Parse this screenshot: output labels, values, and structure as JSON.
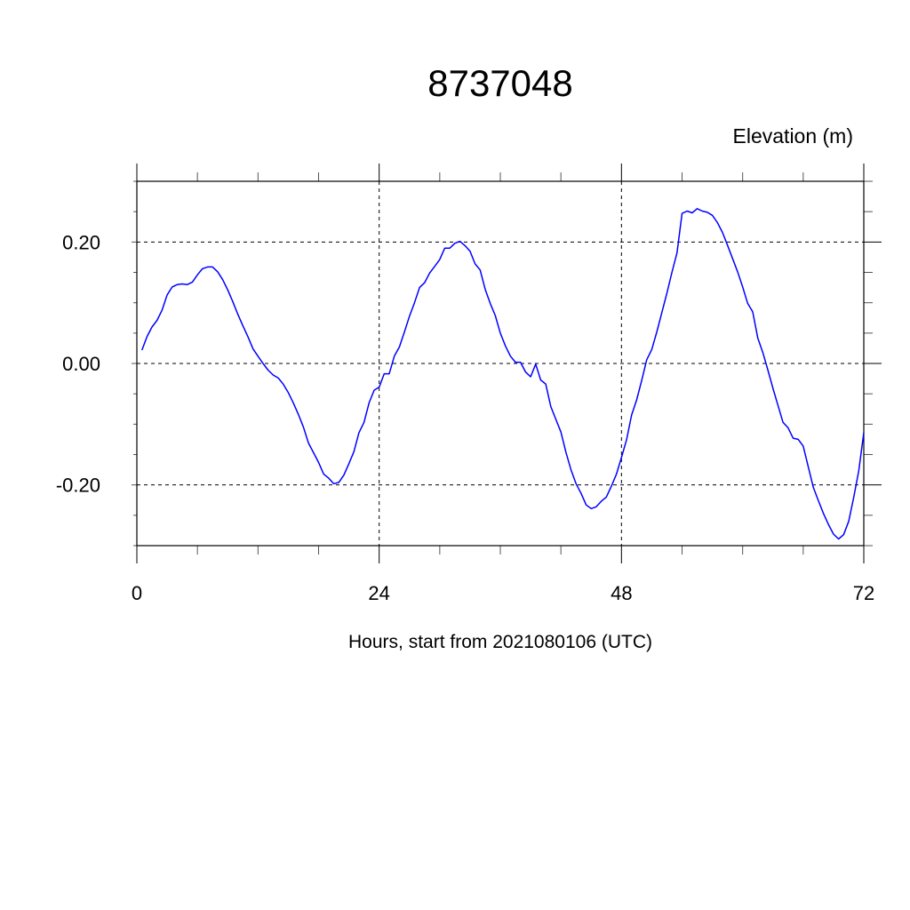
{
  "chart_data": {
    "type": "line",
    "title": "8737048",
    "ylabel": "Elevation (m)",
    "xlabel": "Hours, start from 2021080106 (UTC)",
    "xlim": [
      0,
      72
    ],
    "ylim": [
      -0.3,
      0.3
    ],
    "x_ticks": [
      0,
      24,
      48,
      72
    ],
    "x_tick_labels": [
      "0",
      "24",
      "48",
      "72"
    ],
    "y_ticks": [
      0.2,
      0.0,
      -0.2
    ],
    "y_tick_labels": [
      "0.20",
      "0.00",
      "-0.20"
    ],
    "grid": true,
    "line_color": "#0000ff",
    "series": [
      {
        "x": [
          0.5,
          1,
          1.5,
          2,
          2.5,
          3,
          3.5,
          4,
          4.5,
          5,
          5.5,
          6,
          6.5,
          7,
          7.5,
          8,
          8.5,
          9,
          9.5,
          10,
          10.5,
          11,
          11.5,
          12,
          12.5,
          13,
          13.5,
          14,
          14.5,
          15,
          15.5,
          16,
          16.5,
          17,
          17.5,
          18,
          18.5,
          19,
          19.5,
          20,
          20.5,
          21,
          21.5,
          22,
          22.5,
          23,
          23.5,
          24,
          24.5,
          25,
          25.5,
          26,
          26.5,
          27,
          27.5,
          28,
          28.5,
          29,
          29.5,
          30,
          30.5,
          31,
          31.5,
          32,
          32.5,
          33,
          33.5,
          34,
          34.5,
          35,
          35.5,
          36,
          36.5,
          37,
          37.5,
          38,
          38.5,
          39,
          39.5,
          40,
          40.5,
          41,
          41.5,
          42,
          42.5,
          43,
          43.5,
          44,
          44.5,
          45,
          45.5,
          46,
          46.5,
          47,
          47.5,
          48,
          48.5,
          49,
          49.5,
          50,
          50.5,
          51,
          51.5,
          52,
          52.5,
          53,
          53.5,
          54,
          54.5,
          55,
          55.5,
          56,
          56.5,
          57,
          57.5,
          58,
          58.5,
          59,
          59.5,
          60,
          60.5,
          61,
          61.5,
          62,
          62.5,
          63,
          63.5,
          64,
          64.5,
          65,
          65.5,
          66,
          66.5,
          67,
          67.5,
          68,
          68.5,
          69,
          69.5,
          70,
          70.5,
          71,
          71.5,
          72
        ],
        "values": [
          0.022,
          0.044,
          0.06,
          0.071,
          0.088,
          0.113,
          0.126,
          0.13,
          0.131,
          0.13,
          0.134,
          0.146,
          0.156,
          0.159,
          0.159,
          0.151,
          0.138,
          0.121,
          0.102,
          0.081,
          0.062,
          0.044,
          0.024,
          0.012,
          0.0,
          -0.011,
          -0.019,
          -0.024,
          -0.034,
          -0.048,
          -0.065,
          -0.084,
          -0.105,
          -0.131,
          -0.147,
          -0.163,
          -0.182,
          -0.189,
          -0.198,
          -0.196,
          -0.184,
          -0.165,
          -0.145,
          -0.114,
          -0.097,
          -0.065,
          -0.044,
          -0.039,
          -0.017,
          -0.017,
          0.012,
          0.027,
          0.052,
          0.078,
          0.1,
          0.125,
          0.133,
          0.149,
          0.16,
          0.171,
          0.19,
          0.19,
          0.198,
          0.201,
          0.194,
          0.185,
          0.164,
          0.154,
          0.122,
          0.099,
          0.079,
          0.05,
          0.029,
          0.012,
          0.002,
          0.002,
          -0.014,
          -0.022,
          -0.001,
          -0.027,
          -0.034,
          -0.071,
          -0.092,
          -0.113,
          -0.146,
          -0.175,
          -0.198,
          -0.214,
          -0.233,
          -0.239,
          -0.236,
          -0.227,
          -0.22,
          -0.202,
          -0.182,
          -0.155,
          -0.126,
          -0.085,
          -0.06,
          -0.028,
          0.006,
          0.023,
          0.052,
          0.084,
          0.116,
          0.15,
          0.182,
          0.247,
          0.251,
          0.248,
          0.255,
          0.251,
          0.249,
          0.244,
          0.232,
          0.216,
          0.195,
          0.173,
          0.151,
          0.126,
          0.099,
          0.085,
          0.042,
          0.018,
          -0.011,
          -0.041,
          -0.069,
          -0.097,
          -0.106,
          -0.123,
          -0.125,
          -0.136,
          -0.17,
          -0.204,
          -0.226,
          -0.247,
          -0.265,
          -0.281,
          -0.289,
          -0.282,
          -0.26,
          -0.221,
          -0.177,
          -0.114
        ]
      }
    ]
  }
}
